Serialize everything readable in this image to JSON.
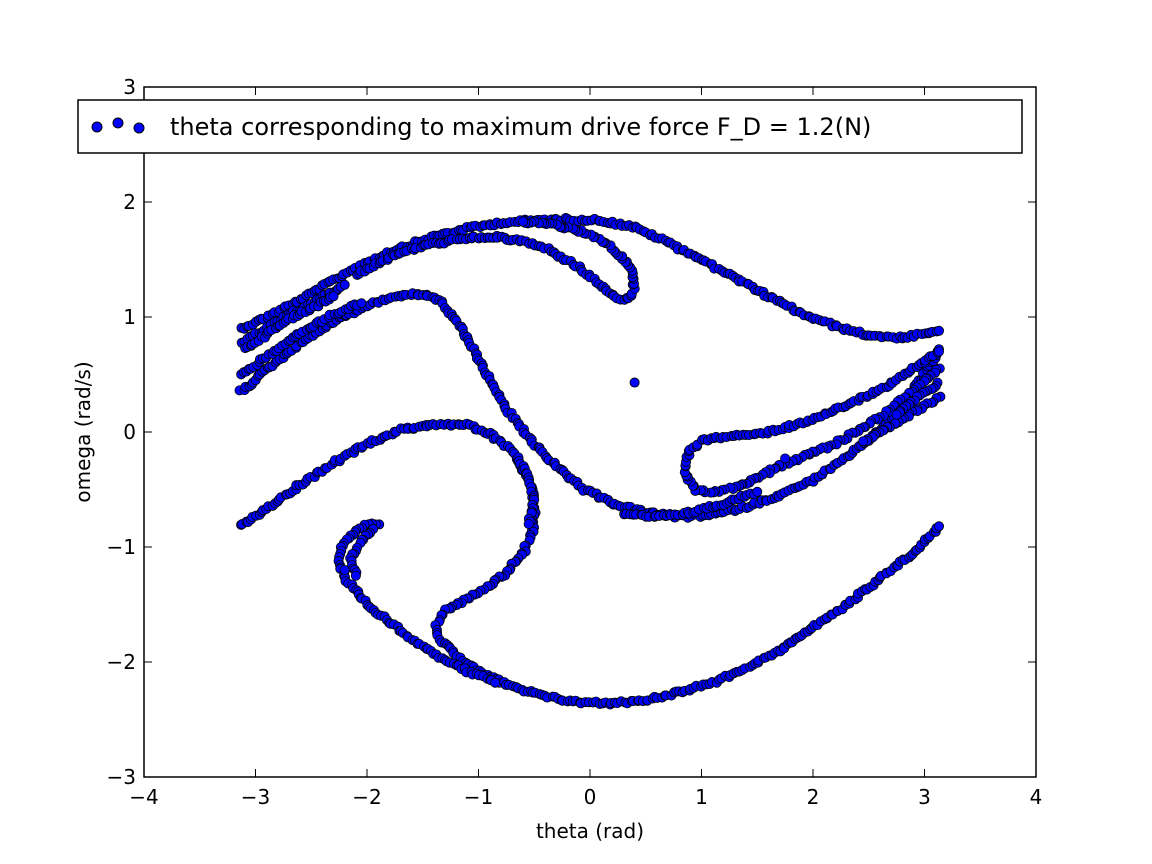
{
  "chart_data": {
    "type": "scatter",
    "xlabel": "theta (rad)",
    "ylabel": "omega (rad/s)",
    "xlim": [
      -4,
      4
    ],
    "ylim": [
      -3,
      3
    ],
    "xticks": [
      -4,
      -3,
      -2,
      -1,
      0,
      1,
      2,
      3,
      4
    ],
    "yticks": [
      -3,
      -2,
      -1,
      0,
      1,
      2,
      3
    ],
    "xtick_labels": [
      "−4",
      "−3",
      "−2",
      "−1",
      "0",
      "1",
      "2",
      "3",
      "4"
    ],
    "ytick_labels": [
      "−3",
      "−2",
      "−1",
      "0",
      "1",
      "2",
      "3"
    ],
    "grid": false,
    "legend": {
      "position": "top",
      "entries": [
        "theta corresponding to maximum drive force F_D = 1.2(N)"
      ]
    },
    "marker_color": "#0000ff",
    "marker_edge_color": "#000000",
    "series": [
      {
        "name": "theta corresponding to maximum drive force F_D = 1.2(N)",
        "curves": [
          [
            [
              -3.13,
              0.9
            ],
            [
              -2.9,
              1.0
            ],
            [
              -2.6,
              1.15
            ],
            [
              -2.3,
              1.32
            ],
            [
              -2.0,
              1.48
            ],
            [
              -1.7,
              1.6
            ],
            [
              -1.4,
              1.7
            ],
            [
              -1.1,
              1.77
            ],
            [
              -0.8,
              1.82
            ],
            [
              -0.5,
              1.84
            ],
            [
              -0.2,
              1.85
            ],
            [
              0.1,
              1.84
            ],
            [
              0.4,
              1.78
            ],
            [
              0.7,
              1.65
            ],
            [
              1.0,
              1.5
            ],
            [
              1.3,
              1.34
            ],
            [
              1.6,
              1.18
            ],
            [
              1.9,
              1.03
            ],
            [
              2.2,
              0.92
            ],
            [
              2.5,
              0.84
            ],
            [
              2.8,
              0.82
            ],
            [
              3.0,
              0.85
            ],
            [
              3.13,
              0.88
            ]
          ],
          [
            [
              -3.13,
              0.78
            ],
            [
              -2.9,
              0.9
            ],
            [
              -2.7,
              1.02
            ],
            [
              -2.5,
              1.12
            ],
            [
              -2.35,
              1.2
            ],
            [
              -2.2,
              1.28
            ]
          ],
          [
            [
              -3.1,
              0.72
            ],
            [
              -2.9,
              0.85
            ],
            [
              -2.7,
              0.98
            ],
            [
              -2.5,
              1.08
            ],
            [
              -2.3,
              1.18
            ]
          ],
          [
            [
              -2.1,
              1.37
            ],
            [
              -1.8,
              1.52
            ],
            [
              -1.5,
              1.62
            ],
            [
              -1.2,
              1.67
            ],
            [
              -0.9,
              1.7
            ],
            [
              -0.6,
              1.66
            ],
            [
              -0.35,
              1.58
            ],
            [
              -0.1,
              1.43
            ],
            [
              0.1,
              1.27
            ],
            [
              0.2,
              1.18
            ],
            [
              0.3,
              1.15
            ],
            [
              0.38,
              1.18
            ],
            [
              0.4,
              1.3
            ],
            [
              0.35,
              1.45
            ],
            [
              0.2,
              1.6
            ],
            [
              0.0,
              1.72
            ],
            [
              -0.3,
              1.8
            ],
            [
              -0.6,
              1.83
            ]
          ],
          [
            [
              -3.13,
              0.35
            ],
            [
              -2.9,
              0.55
            ],
            [
              -2.6,
              0.77
            ],
            [
              -2.3,
              0.96
            ],
            [
              -2.0,
              1.1
            ],
            [
              -1.75,
              1.18
            ],
            [
              -1.5,
              1.2
            ],
            [
              -1.35,
              1.15
            ],
            [
              -1.2,
              0.98
            ],
            [
              -1.05,
              0.72
            ],
            [
              -0.9,
              0.45
            ],
            [
              -0.75,
              0.2
            ],
            [
              -0.55,
              -0.05
            ],
            [
              -0.3,
              -0.3
            ],
            [
              -0.05,
              -0.5
            ],
            [
              0.2,
              -0.62
            ],
            [
              0.5,
              -0.7
            ],
            [
              0.8,
              -0.74
            ],
            [
              1.1,
              -0.72
            ],
            [
              1.4,
              -0.65
            ],
            [
              1.7,
              -0.55
            ],
            [
              2.0,
              -0.42
            ],
            [
              2.3,
              -0.22
            ],
            [
              2.6,
              0.02
            ],
            [
              2.85,
              0.28
            ],
            [
              3.13,
              0.72
            ]
          ],
          [
            [
              -3.13,
              0.5
            ],
            [
              -2.9,
              0.65
            ],
            [
              -2.6,
              0.86
            ],
            [
              -2.3,
              1.02
            ],
            [
              -2.05,
              1.12
            ]
          ],
          [
            [
              3.13,
              0.55
            ],
            [
              2.95,
              0.4
            ],
            [
              2.7,
              0.2
            ],
            [
              2.45,
              0.04
            ],
            [
              2.2,
              -0.1
            ],
            [
              1.95,
              -0.2
            ],
            [
              1.7,
              -0.3
            ],
            [
              1.5,
              -0.4
            ],
            [
              1.3,
              -0.48
            ],
            [
              1.1,
              -0.53
            ],
            [
              0.95,
              -0.5
            ],
            [
              0.87,
              -0.4
            ],
            [
              0.85,
              -0.28
            ],
            [
              0.9,
              -0.15
            ],
            [
              1.0,
              -0.08
            ],
            [
              1.2,
              -0.04
            ],
            [
              1.5,
              -0.02
            ],
            [
              1.8,
              0.05
            ],
            [
              2.1,
              0.15
            ],
            [
              2.4,
              0.28
            ],
            [
              2.7,
              0.42
            ],
            [
              2.95,
              0.58
            ],
            [
              3.13,
              0.7
            ]
          ],
          [
            [
              3.13,
              0.3
            ],
            [
              2.95,
              0.2
            ],
            [
              2.7,
              0.05
            ],
            [
              2.45,
              -0.08
            ]
          ],
          [
            [
              3.13,
              0.42
            ],
            [
              2.95,
              0.32
            ],
            [
              2.75,
              0.15
            ]
          ],
          [
            [
              0.3,
              -0.72
            ],
            [
              0.6,
              -0.74
            ],
            [
              0.9,
              -0.7
            ],
            [
              1.2,
              -0.62
            ],
            [
              1.5,
              -0.52
            ]
          ],
          [
            [
              -3.13,
              -0.82
            ],
            [
              -2.9,
              -0.66
            ],
            [
              -2.6,
              -0.46
            ],
            [
              -2.3,
              -0.27
            ],
            [
              -2.0,
              -0.1
            ],
            [
              -1.7,
              0.02
            ],
            [
              -1.4,
              0.07
            ],
            [
              -1.1,
              0.06
            ],
            [
              -0.9,
              -0.02
            ],
            [
              -0.72,
              -0.15
            ],
            [
              -0.6,
              -0.32
            ],
            [
              -0.52,
              -0.5
            ],
            [
              -0.5,
              -0.7
            ],
            [
              -0.52,
              -0.88
            ],
            [
              -0.6,
              -1.05
            ],
            [
              -0.75,
              -1.22
            ],
            [
              -0.9,
              -1.33
            ],
            [
              -1.1,
              -1.45
            ],
            [
              -1.3,
              -1.55
            ],
            [
              -1.38,
              -1.68
            ],
            [
              -1.35,
              -1.8
            ],
            [
              -1.2,
              -1.95
            ],
            [
              -1.0,
              -2.08
            ],
            [
              -0.7,
              -2.22
            ],
            [
              -0.4,
              -2.3
            ],
            [
              -0.1,
              -2.35
            ],
            [
              0.2,
              -2.36
            ],
            [
              0.5,
              -2.33
            ],
            [
              0.8,
              -2.26
            ],
            [
              1.1,
              -2.18
            ],
            [
              1.4,
              -2.05
            ],
            [
              1.7,
              -1.9
            ],
            [
              2.0,
              -1.7
            ],
            [
              2.3,
              -1.5
            ],
            [
              2.6,
              -1.27
            ],
            [
              2.9,
              -1.05
            ],
            [
              3.13,
              -0.82
            ]
          ],
          [
            [
              -1.9,
              -0.8
            ],
            [
              -2.05,
              -0.82
            ],
            [
              -2.15,
              -0.9
            ],
            [
              -2.23,
              -1.0
            ],
            [
              -2.25,
              -1.15
            ],
            [
              -2.18,
              -1.3
            ],
            [
              -2.0,
              -1.5
            ],
            [
              -1.8,
              -1.65
            ],
            [
              -1.6,
              -1.8
            ],
            [
              -1.35,
              -1.95
            ],
            [
              -1.1,
              -2.08
            ],
            [
              -0.85,
              -2.18
            ]
          ],
          [
            [
              -1.95,
              -0.85
            ],
            [
              -2.05,
              -0.95
            ],
            [
              -2.15,
              -1.1
            ],
            [
              -2.1,
              -1.25
            ]
          ],
          [
            [
              -0.65,
              -0.22
            ],
            [
              -0.55,
              -0.4
            ],
            [
              -0.5,
              -0.6
            ],
            [
              -0.55,
              -0.8
            ]
          ]
        ],
        "isolated_points": [
          [
            0.4,
            0.43
          ],
          [
            1.75,
            -0.23
          ],
          [
            -2.2,
            -1.2
          ]
        ]
      }
    ]
  }
}
